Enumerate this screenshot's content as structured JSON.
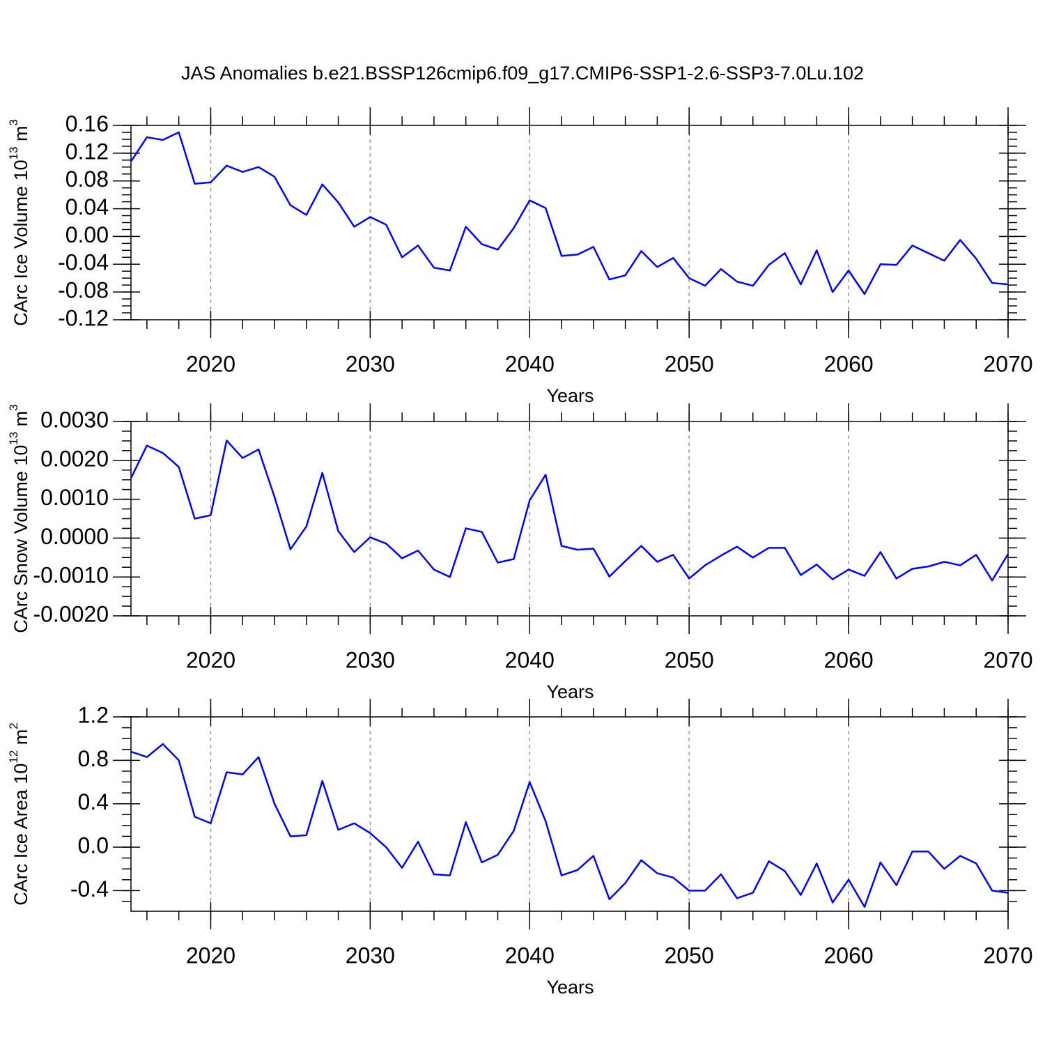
{
  "chart_data": [
    {
      "type": "line",
      "title": "JAS Anomalies b.e21.BSSP126cmip6.f09_g17.CMIP6-SSP1-2.6-SSP3-7.0Lu.102",
      "xlabel": "Years",
      "ylabel": [
        "CArc Ice Volume 10",
        "13",
        " m",
        "3"
      ],
      "x": [
        2015,
        2016,
        2017,
        2018,
        2019,
        2020,
        2021,
        2022,
        2023,
        2024,
        2025,
        2026,
        2027,
        2028,
        2029,
        2030,
        2031,
        2032,
        2033,
        2034,
        2035,
        2036,
        2037,
        2038,
        2039,
        2040,
        2041,
        2042,
        2043,
        2044,
        2045,
        2046,
        2047,
        2048,
        2049,
        2050,
        2051,
        2052,
        2053,
        2054,
        2055,
        2056,
        2057,
        2058,
        2059,
        2060,
        2061,
        2062,
        2063,
        2064,
        2065,
        2066,
        2067,
        2068,
        2069,
        2070
      ],
      "series": [
        {
          "color": "#0000ff",
          "values": [
            0.108,
            0.143,
            0.139,
            0.15,
            0.076,
            0.078,
            0.102,
            0.093,
            0.1,
            0.086,
            0.045,
            0.031,
            0.075,
            0.049,
            0.014,
            0.028,
            0.017,
            -0.03,
            -0.013,
            -0.045,
            -0.049,
            0.014,
            -0.011,
            -0.019,
            0.012,
            0.052,
            0.041,
            -0.028,
            -0.026,
            -0.015,
            -0.062,
            -0.056,
            -0.021,
            -0.044,
            -0.031,
            -0.06,
            -0.071,
            -0.047,
            -0.065,
            -0.071,
            -0.041,
            -0.024,
            -0.069,
            -0.02,
            -0.08,
            -0.049,
            -0.083,
            -0.04,
            -0.041,
            -0.013,
            -0.024,
            -0.035,
            -0.005,
            -0.032,
            -0.067,
            -0.069
          ]
        }
      ],
      "xlim": [
        2015,
        2070
      ],
      "xticks": [
        2020,
        2030,
        2040,
        2050,
        2060,
        2070
      ],
      "ylim": [
        -0.12,
        0.16
      ],
      "yticks": [
        0.16,
        0.12,
        0.08,
        0.04,
        {
          "value": 0,
          "label": "0.00"
        },
        -0.04,
        -0.08,
        -0.12
      ],
      "grid": "x-dashed"
    },
    {
      "type": "line",
      "xlabel": "Years",
      "ylabel": [
        "CArc Snow Volume 10",
        "13",
        " m",
        "3"
      ],
      "x": [
        2015,
        2016,
        2017,
        2018,
        2019,
        2020,
        2021,
        2022,
        2023,
        2024,
        2025,
        2026,
        2027,
        2028,
        2029,
        2030,
        2031,
        2032,
        2033,
        2034,
        2035,
        2036,
        2037,
        2038,
        2039,
        2040,
        2041,
        2042,
        2043,
        2044,
        2045,
        2046,
        2047,
        2048,
        2049,
        2050,
        2051,
        2052,
        2053,
        2054,
        2055,
        2056,
        2057,
        2058,
        2059,
        2060,
        2061,
        2062,
        2063,
        2064,
        2065,
        2066,
        2067,
        2068,
        2069,
        2070
      ],
      "series": [
        {
          "color": "#0000ff",
          "values": [
            0.00154,
            0.00238,
            0.00219,
            0.00183,
            0.0005,
            0.00059,
            0.00251,
            0.00206,
            0.00228,
            0.00106,
            -0.00029,
            0.0003,
            0.00168,
            0.00018,
            -0.00036,
            2e-05,
            -0.00014,
            -0.00052,
            -0.00032,
            -0.00081,
            -0.001,
            0.00025,
            0.00016,
            -0.00063,
            -0.00054,
            0.00097,
            0.00163,
            -0.0002,
            -0.0003,
            -0.00027,
            -0.00099,
            -0.00059,
            -0.0002,
            -0.00061,
            -0.00043,
            -0.00104,
            -0.0007,
            -0.00045,
            -0.00022,
            -0.0005,
            -0.00025,
            -0.00025,
            -0.00095,
            -0.00068,
            -0.00106,
            -0.00081,
            -0.00097,
            -0.00036,
            -0.00104,
            -0.00079,
            -0.00073,
            -0.00061,
            -0.0007,
            -0.00043,
            -0.00109,
            -0.00041
          ]
        }
      ],
      "xlim": [
        2015,
        2070
      ],
      "xticks": [
        2020,
        2030,
        2040,
        2050,
        2060,
        2070
      ],
      "ylim": [
        -0.002,
        0.003
      ],
      "yticks": [
        {
          "value": 0.003,
          "label": "0.0030"
        },
        {
          "value": 0.002,
          "label": "0.0020"
        },
        {
          "value": 0.001,
          "label": "0.0010"
        },
        {
          "value": 0,
          "label": "0.0000"
        },
        {
          "value": -0.001,
          "label": "-0.0010"
        },
        {
          "value": -0.002,
          "label": "-0.0020"
        }
      ],
      "grid": "x-dashed"
    },
    {
      "type": "line",
      "xlabel": "Years",
      "ylabel": [
        "CArc Ice Area 10",
        "12",
        " m",
        "2"
      ],
      "x": [
        2015,
        2016,
        2017,
        2018,
        2019,
        2020,
        2021,
        2022,
        2023,
        2024,
        2025,
        2026,
        2027,
        2028,
        2029,
        2030,
        2031,
        2032,
        2033,
        2034,
        2035,
        2036,
        2037,
        2038,
        2039,
        2040,
        2041,
        2042,
        2043,
        2044,
        2045,
        2046,
        2047,
        2048,
        2049,
        2050,
        2051,
        2052,
        2053,
        2054,
        2055,
        2056,
        2057,
        2058,
        2059,
        2060,
        2061,
        2062,
        2063,
        2064,
        2065,
        2066,
        2067,
        2068,
        2069,
        2070
      ],
      "series": [
        {
          "color": "#0000ff",
          "values": [
            0.88,
            0.83,
            0.95,
            0.8,
            0.28,
            0.22,
            0.69,
            0.67,
            0.83,
            0.4,
            0.1,
            0.11,
            0.61,
            0.16,
            0.22,
            0.13,
            0.0,
            -0.19,
            0.05,
            -0.25,
            -0.26,
            0.23,
            -0.14,
            -0.07,
            0.15,
            0.6,
            0.24,
            -0.26,
            -0.21,
            -0.08,
            -0.48,
            -0.33,
            -0.12,
            -0.24,
            -0.28,
            -0.4,
            -0.4,
            -0.25,
            -0.47,
            -0.42,
            -0.13,
            -0.22,
            -0.44,
            -0.15,
            -0.51,
            -0.3,
            -0.55,
            -0.14,
            -0.35,
            -0.04,
            -0.04,
            -0.2,
            -0.08,
            -0.15,
            -0.4,
            -0.42
          ]
        }
      ],
      "xlim": [
        2015,
        2070
      ],
      "xticks": [
        2020,
        2030,
        2040,
        2050,
        2060,
        2070
      ],
      "ylim": [
        -0.59,
        1.2
      ],
      "yticks": [
        1.2,
        0.8,
        0.4,
        {
          "value": 0,
          "label": "0.0"
        },
        -0.4
      ],
      "grid": "x-dashed"
    }
  ]
}
